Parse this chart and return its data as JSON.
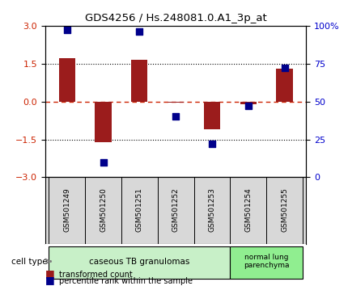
{
  "title": "GDS4256 / Hs.248081.0.A1_3p_at",
  "samples": [
    "GSM501249",
    "GSM501250",
    "GSM501251",
    "GSM501252",
    "GSM501253",
    "GSM501254",
    "GSM501255"
  ],
  "transformed_count": [
    1.7,
    -1.6,
    1.65,
    -0.05,
    -1.1,
    -0.1,
    1.3
  ],
  "percentile_rank": [
    97,
    10,
    96,
    40,
    22,
    47,
    72
  ],
  "bar_color": "#9b1c1c",
  "dot_color": "#00008b",
  "ylim_left": [
    -3,
    3
  ],
  "ylim_right": [
    0,
    100
  ],
  "yticks_left": [
    -3,
    -1.5,
    0,
    1.5,
    3
  ],
  "yticks_right": [
    0,
    25,
    50,
    75,
    100
  ],
  "ytick_labels_right": [
    "0%",
    "25",
    "50",
    "75",
    "100%"
  ],
  "group1_indices": [
    0,
    1,
    2,
    3,
    4
  ],
  "group2_indices": [
    5,
    6
  ],
  "group1_label": "caseous TB granulomas",
  "group2_label": "normal lung\nparenchyma",
  "group1_color": "#c8f0c8",
  "group2_color": "#90ee90",
  "cell_type_label": "cell type",
  "legend_red_label": "transformed count",
  "legend_blue_label": "percentile rank within the sample",
  "background_color": "#ffffff",
  "plot_bg_color": "#ffffff",
  "label_color_left": "#cc2200",
  "label_color_right": "#0000cc",
  "dotted_line_color": "#000000",
  "zero_line_color": "#cc2200"
}
